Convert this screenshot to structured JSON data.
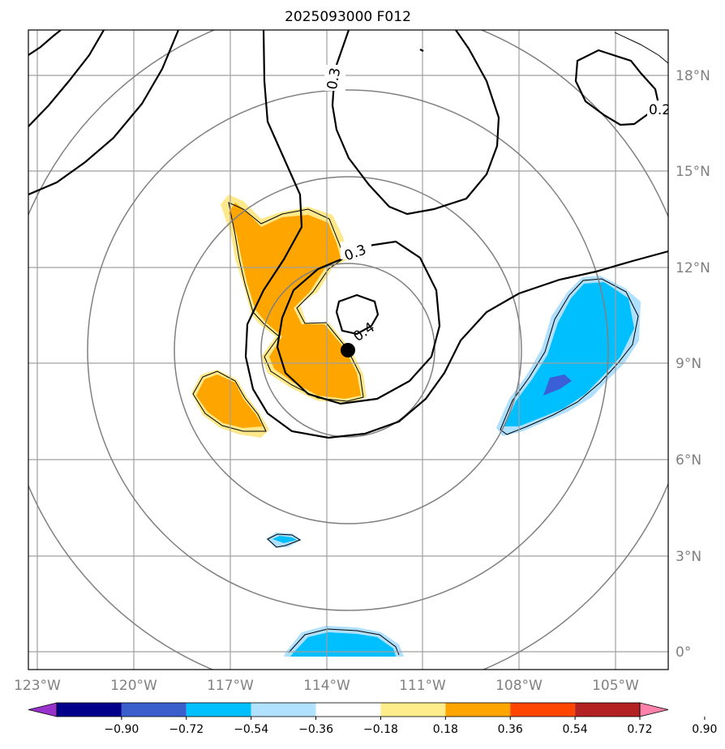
{
  "title": "2025093000 F012",
  "map": {
    "lon_labels": [
      "123°W",
      "120°W",
      "117°W",
      "114°W",
      "111°W",
      "108°W",
      "105°W"
    ],
    "lat_labels": [
      "18°N",
      "15°N",
      "12°N",
      "9°N",
      "6°N",
      "3°N",
      "0°"
    ],
    "contour_labels": [
      "0.3",
      "0.3",
      "0.4",
      "0.2"
    ],
    "colors": {
      "grid": "#a0a0a0",
      "range_rings": "#808080",
      "contours": "#000000",
      "positive_light": "#fde98c",
      "positive_dark": "#ffa500",
      "negative_light": "#b0e0ff",
      "negative_mid": "#00bfff",
      "negative_dark": "#3b5fd6"
    },
    "center_marker": "filled-black-circle"
  },
  "colorbar": {
    "ticks": [
      "−0.90",
      "−0.72",
      "−0.54",
      "−0.36",
      "−0.18",
      "0.18",
      "0.36",
      "0.54",
      "0.72",
      "0.90"
    ],
    "colors": [
      "#9932cc",
      "#00008b",
      "#3a5fcd",
      "#00bfff",
      "#b0e2ff",
      "#ffffff",
      "#ffec8b",
      "#ffa500",
      "#ff4500",
      "#b22222",
      "#ff82ab"
    ],
    "extend": "both"
  }
}
